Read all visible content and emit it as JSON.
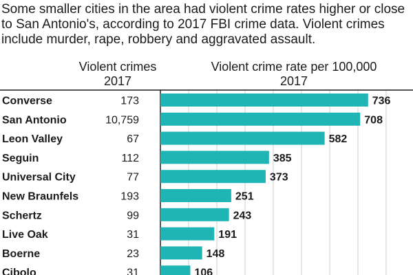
{
  "intro": "Some smaller cities in the area had violent crime rates higher or close to San Antonio's, according to 2017 FBI crime data. Violent crimes include murder, rape, robbery and aggravated assault.",
  "headers": {
    "count_line1": "Violent crimes",
    "count_line2": "2017",
    "rate_line1": "Violent crime rate per 100,000",
    "rate_line2": "2017"
  },
  "colors": {
    "bar": "#1fb5b5",
    "grid": "#cfcfcf",
    "rule": "#1a1a1a"
  },
  "chart_data": {
    "type": "bar",
    "orientation": "horizontal",
    "categories": [
      "Converse",
      "San Antonio",
      "Leon Valley",
      "Seguin",
      "Universal City",
      "New Braunfels",
      "Schertz",
      "Live Oak",
      "Boerne",
      "Cibolo"
    ],
    "violent_crimes_2017": [
      "173",
      "10,759",
      "67",
      "112",
      "77",
      "193",
      "99",
      "31",
      "23",
      "31"
    ],
    "values": [
      736,
      708,
      582,
      385,
      373,
      251,
      243,
      191,
      148,
      106
    ],
    "xlim": [
      0,
      900
    ],
    "grid": true
  }
}
